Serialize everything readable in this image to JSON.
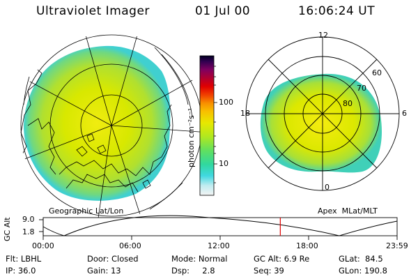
{
  "header": {
    "instrument": "Ultraviolet Imager",
    "date": "01 Jul 00",
    "time": "16:06:24 UT"
  },
  "colorbar": {
    "unit_label": "photon cm⁻²s⁻¹",
    "tick_100": "100",
    "tick_10": "10"
  },
  "geo_panel": {
    "caption": "Geographic Lat/Lon"
  },
  "apex_panel": {
    "caption": "Apex  MLat/MLT",
    "mlt_12": "12",
    "mlt_18": "18",
    "mlt_6": "6",
    "mlt_0": "0",
    "lat_60": "60",
    "lat_70": "70",
    "lat_80": "80"
  },
  "orbit_strip": {
    "ylabel": "GC Alt",
    "y_top": "9.0",
    "y_bottom": "1.8",
    "time_ticks": [
      "00:00",
      "06:00",
      "12:00",
      "18:00",
      "23:59"
    ],
    "current_fraction": 0.67
  },
  "info": {
    "flt": "Flt: LBHL",
    "ip": "IP: 36.0",
    "door": "Door: Closed",
    "gain": "Gain: 13",
    "mode": "Mode: Normal",
    "dsp": "Dsp:     2.8",
    "gc_alt": "GC Alt: 6.9 Re",
    "seq": "Seq: 39",
    "glat": "GLat:  84.5",
    "glon": "GLon: 190.8"
  },
  "colors": {
    "aurora_main": "#c8e600",
    "aurora_edge": "#40d8a0",
    "accent_red": "#e00000"
  }
}
